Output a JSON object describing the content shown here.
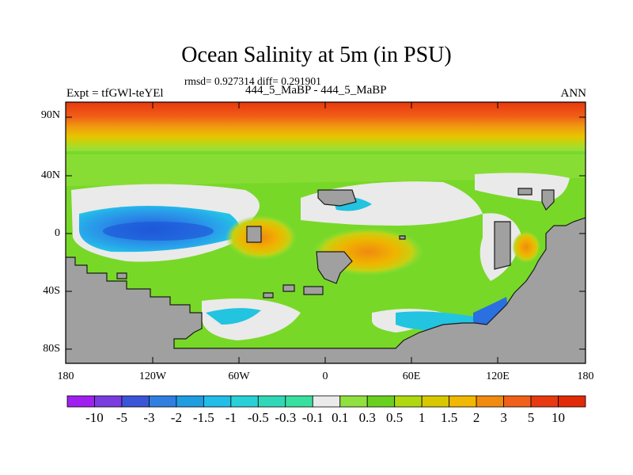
{
  "title": "Ocean Salinity at 5m (in PSU)",
  "stats": "rmsd= 0.927314 diff= 0.291901",
  "experiment": "Expt = tfGWl-teYEl",
  "cases": "444_5_MaBP - 444_5_MaBP",
  "season": "ANN",
  "lat_ticks": [
    "90N",
    "40N",
    "0",
    "40S",
    "80S"
  ],
  "lon_ticks": [
    "180",
    "120W",
    "60W",
    "0",
    "60E",
    "120E",
    "180"
  ],
  "colorbar": {
    "labels": [
      "-10",
      "-5",
      "-3",
      "-2",
      "-1.5",
      "-1",
      "-0.5",
      "-0.3",
      "-0.1",
      "0.1",
      "0.3",
      "0.5",
      "1",
      "1.5",
      "2",
      "3",
      "5",
      "10"
    ],
    "colors": [
      "#a020f0",
      "#7a3ce0",
      "#3b55d8",
      "#2f7fe0",
      "#1e9de0",
      "#22bde8",
      "#2ad0d8",
      "#30d8b8",
      "#38e0a0",
      "#eaeaea",
      "#90e040",
      "#6ad020",
      "#b0d810",
      "#d8c800",
      "#f0b800",
      "#f08a10",
      "#f06018",
      "#e83a10",
      "#e02a08"
    ]
  },
  "land_color": "#a0a0a0",
  "ocean_base_color": "#78d828"
}
